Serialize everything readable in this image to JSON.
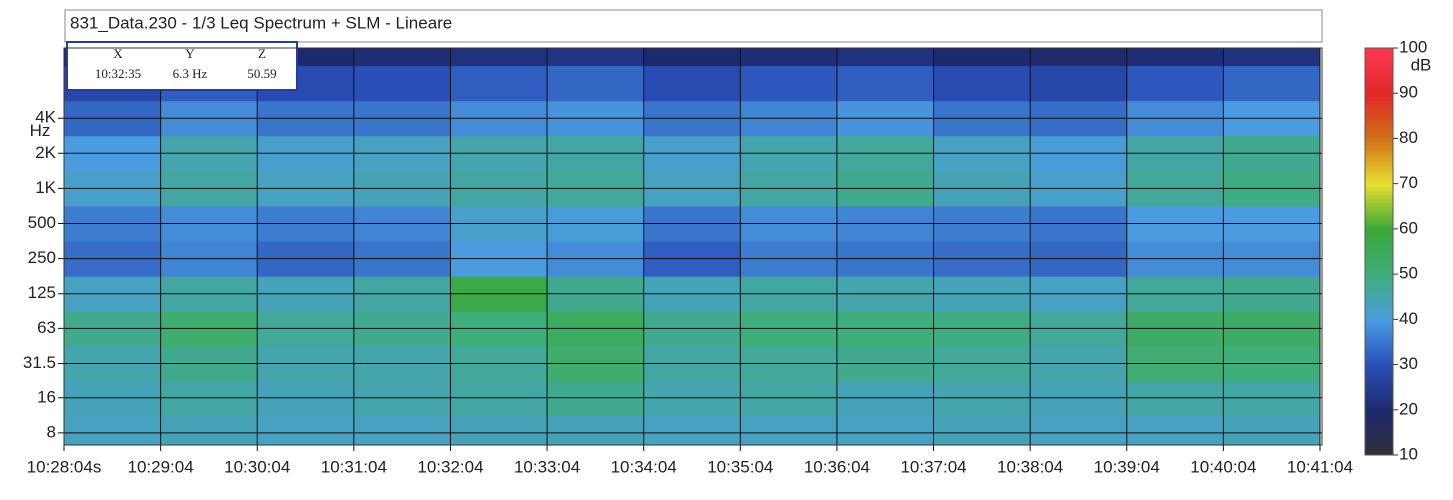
{
  "chart_data": {
    "type": "heatmap",
    "title": "831_Data.230 - 1/3 Leq Spectrum + SLM - Lineare",
    "cursor": {
      "labels": [
        "X",
        "Y",
        "Z"
      ],
      "values": [
        "10:32:35",
        "6.3 Hz",
        50.59
      ]
    },
    "xticks": [
      "10:28:04s",
      "10:29:04",
      "10:30:04",
      "10:31:04",
      "10:32:04",
      "10:33:04",
      "10:34:04",
      "10:35:04",
      "10:36:04",
      "10:37:04",
      "10:38:04",
      "10:39:04",
      "10:40:04",
      "10:41:04"
    ],
    "y_label": "Hz",
    "y_log": true,
    "ylim": [
      6.3,
      16000
    ],
    "yticks": [
      8,
      16,
      31.5,
      63,
      125,
      250,
      500,
      {
        "value": 1000,
        "label": "1K"
      },
      {
        "value": 2000,
        "label": "2K"
      },
      {
        "value": 4000,
        "label": "4K"
      }
    ],
    "y": [
      8,
      16,
      31.5,
      63,
      125,
      250,
      500,
      1000,
      2000,
      4000,
      8000,
      16000
    ],
    "z": [
      [
        43,
        44,
        43,
        43,
        44,
        44,
        43,
        43,
        43,
        44,
        43,
        43,
        44
      ],
      [
        44,
        46,
        44,
        45,
        46,
        48,
        45,
        46,
        44,
        45,
        44,
        46,
        46
      ],
      [
        45,
        48,
        45,
        45,
        47,
        52,
        46,
        47,
        48,
        47,
        45,
        51,
        50
      ],
      [
        48,
        52,
        47,
        48,
        50,
        54,
        48,
        50,
        50,
        49,
        47,
        53,
        53
      ],
      [
        43,
        46,
        44,
        46,
        58,
        48,
        44,
        46,
        45,
        44,
        43,
        47,
        48
      ],
      [
        34,
        37,
        33,
        35,
        40,
        38,
        32,
        36,
        35,
        34,
        33,
        38,
        38
      ],
      [
        36,
        38,
        36,
        37,
        42,
        41,
        35,
        38,
        37,
        36,
        35,
        40,
        40
      ],
      [
        42,
        46,
        43,
        44,
        46,
        47,
        43,
        46,
        48,
        44,
        42,
        47,
        49
      ],
      [
        40,
        45,
        42,
        43,
        45,
        46,
        42,
        45,
        47,
        43,
        41,
        46,
        48
      ],
      [
        33,
        38,
        35,
        35,
        38,
        39,
        35,
        37,
        39,
        35,
        34,
        38,
        40
      ],
      [
        28,
        32,
        29,
        30,
        32,
        33,
        29,
        31,
        32,
        29,
        28,
        31,
        33
      ],
      [
        20,
        22,
        20,
        21,
        22,
        23,
        20,
        21,
        22,
        20,
        19,
        21,
        22
      ]
    ],
    "colorbar_label": "dB",
    "clim": [
      10,
      100
    ],
    "cticks": [
      10,
      20,
      30,
      40,
      50,
      60,
      70,
      80,
      90,
      100
    ],
    "colormap": [
      "#303038",
      "#1e2a6e",
      "#2a4fb8",
      "#4a9be0",
      "#3fae7a",
      "#3aa83a",
      "#e8e030",
      "#d07018",
      "#e02828",
      "#ff3a50"
    ],
    "grid": true
  }
}
